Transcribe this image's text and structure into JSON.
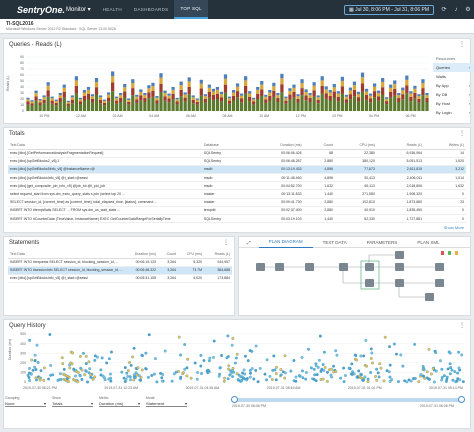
{
  "header": {
    "logo": "SentryOne.",
    "nav_dropdown": "Monitor ▾",
    "tabs": [
      {
        "label": "HEALTH",
        "active": false
      },
      {
        "label": "DASHBOARDS",
        "active": false
      },
      {
        "label": "TOP SQL",
        "active": true
      }
    ],
    "date_range": "Jul 30, 8:06 PM - Jul 31, 8:06 PM",
    "icons": [
      "calendar-icon",
      "sync-icon",
      "bell-icon",
      "settings-icon"
    ]
  },
  "server": {
    "name": "TI-SQL2016",
    "description": "Microsoft Windows Server 2012 R2 Standard · SQL Server 13.00.5026"
  },
  "queries_panel": {
    "title": "Queries - Reads (L)",
    "side_header": "Resources",
    "side_items": [
      {
        "label": "Queries",
        "active": true
      },
      {
        "label": "Waits",
        "active": false
      },
      {
        "label": "By App",
        "active": false
      },
      {
        "label": "By DB",
        "active": false
      },
      {
        "label": "By Host",
        "active": false
      },
      {
        "label": "By Login",
        "active": false
      }
    ]
  },
  "chart_data": {
    "type": "bar",
    "stacked": true,
    "ylabel": "Reads (L)",
    "yticks": [
      "0",
      "10",
      "20",
      "30",
      "40",
      "50",
      "60",
      "70",
      "80",
      "90"
    ],
    "ylim": [
      0,
      90
    ],
    "xticks": [
      "10 PM",
      "12 AM",
      "02 AM",
      "04 AM",
      "06 AM",
      "08 AM",
      "10 AM",
      "12 PM",
      "02 PM",
      "04 PM",
      "06 PM"
    ],
    "series_colors": [
      "#5b7a2e",
      "#9c3b2e",
      "#d8a93a",
      "#4f7fb8"
    ],
    "totals": [
      22,
      18,
      34,
      20,
      26,
      48,
      24,
      19,
      30,
      44,
      17,
      26,
      58,
      22,
      35,
      40,
      28,
      55,
      26,
      19,
      31,
      66,
      24,
      30,
      45,
      21,
      53,
      27,
      36,
      30,
      43,
      47,
      25,
      63,
      34,
      29,
      40,
      22,
      49,
      31,
      56,
      26,
      21,
      52,
      28,
      44,
      37,
      40,
      32,
      61,
      24,
      35,
      46,
      29,
      58,
      33,
      22,
      40,
      50,
      27,
      35,
      47,
      30,
      62,
      24,
      38,
      44,
      28,
      53,
      36,
      30,
      48,
      26,
      58,
      41,
      35,
      45,
      33,
      57,
      27,
      39,
      49,
      32,
      64,
      37,
      29,
      46,
      34,
      55,
      23,
      44,
      51,
      30,
      39,
      59,
      33,
      42,
      28,
      53,
      30
    ]
  },
  "totals_panel": {
    "title": "Totals",
    "columns": [
      "Text Data",
      "Database",
      "Duration (ms)",
      "Count",
      "CPU (ms)",
      "Reads (L)",
      "Writes (L)"
    ],
    "rows": [
      {
        "text": "exec [dbo].[GetPerformanceAnalysisFragmentationRequest]",
        "db": "SQLSentry",
        "dur": "00:06:06.426",
        "count": "68",
        "cpu": "22,380",
        "reads": "6,936,064",
        "writes": "14",
        "sel": false
      },
      {
        "text": "exec [dbo].[spGetBlocks2_v5];1",
        "db": "SQLSentry",
        "dur": "00:06:48.267",
        "count": "2,880",
        "cpu": "380,120",
        "reads": "5,051,513",
        "writes": "1,520",
        "sel": false
      },
      {
        "text": "exec [dbo].[spGetBlocks5Info_v5] @InstanceName=@",
        "db": "msdb",
        "dur": "00:13:19.433",
        "count": "4,896",
        "cpu": "77,673",
        "reads": "2,611,815",
        "writes": "3,212",
        "sel": true
      },
      {
        "text": "exec [dbo].[spGetBlocksInfo_v5] @i_start=@sessi",
        "db": "msdb",
        "dur": "00:11:48.460",
        "count": "4,896",
        "cpu": "30,413",
        "reads": "2,406,011",
        "writes": "1,014",
        "sel": false
      },
      {
        "text": "exec [dbo].[get_composite_job_info_v5] @job_id=@i_pid_job",
        "db": "msdb",
        "dur": "00:04:52.700",
        "count": "1,632",
        "cpu": "69,113",
        "reads": "2,018,806",
        "writes": "1,632",
        "sel": false
      },
      {
        "text": "select request_start from sys.dm_exec_query_stats s join (select top 20 ...",
        "db": "master",
        "dur": "00:13:11.833",
        "count": "1,440",
        "cpu": "271,580",
        "reads": "1,908,320",
        "writes": "0",
        "sel": false
      },
      {
        "text": "SELECT session_id, [current_time] as [current_time], total_elapsed_time, [status], command ...",
        "db": "master",
        "dur": "00:09:41.730",
        "count": "2,880",
        "cpu": "102,810",
        "reads": "1,873,680",
        "writes": "23",
        "sel": false
      },
      {
        "text": "INSERT INTO #tempWaits SELECT ... FROM sys.dm_os_wait_stats ...",
        "db": "tempdb",
        "dur": "00:02:37.400",
        "count": "2,880",
        "cpu": "40,910",
        "reads": "1,835,450",
        "writes": "0",
        "sel": false
      },
      {
        "text": "INSERT INTO #CounterData (TimeValue, InstanceName) EXEC GetCounterDataRangeForSeriallyTime",
        "db": "SQLSentry",
        "dur": "00:03:19.103",
        "count": "1,440",
        "cpu": "52,330",
        "reads": "1,727,881",
        "writes": "0",
        "sel": false
      }
    ],
    "show_more": "Show More"
  },
  "statements_panel": {
    "title": "Statements",
    "columns": [
      "Text Data",
      "Duration (ms)",
      "Count",
      "CPU (ms)",
      "Reads (L)"
    ],
    "rows": [
      {
        "text": "INSERT INTO #requests SELECT session_id, blocking_session_id, ...",
        "dur": "00:06:19.123",
        "count": "3,264",
        "cpu": "5,320",
        "reads": "244,997",
        "sel": false
      },
      {
        "text": "INSERT INTO #sessionInfo SELECT session_id, blocking_session_id, ...",
        "dur": "00:06:48.322",
        "count": "3,264",
        "cpu": "73.7M",
        "reads": "384,688",
        "sel": true
      },
      {
        "text": "exec [dbo].[spGetBlocksInfo_v5] @i_start=@sessi",
        "dur": "00:05:31.105",
        "count": "3,264",
        "cpu": "4,020",
        "reads": "173,884",
        "sel": false
      }
    ]
  },
  "plan_panel": {
    "tabs": [
      {
        "label": "PLAN DIAGRAM",
        "active": true
      },
      {
        "label": "TEXT DATA",
        "active": false
      },
      {
        "label": "PARAMETERS",
        "active": false
      },
      {
        "label": "PLAN XML",
        "active": false
      }
    ]
  },
  "history_panel": {
    "title": "Query History",
    "ylabel": "Duration (ms)",
    "yticks": [
      "0",
      "100",
      "200",
      "300",
      "400",
      "500"
    ],
    "xticks": [
      "2019-07-30 08:21 PM",
      "2019-07-31 12:23 AM",
      "2019-07-31 04:36 AM",
      "2019-07-31 08:49 AM",
      "2019-07-31 01:01 PM",
      "2019-07-31 05:14 PM"
    ],
    "controls": [
      {
        "label": "Grouping",
        "value": "None"
      },
      {
        "label": "Show",
        "value": "Totals"
      },
      {
        "label": "Metric",
        "value": "Duration (ms)"
      },
      {
        "label": "Mode",
        "value": "Statement"
      }
    ],
    "slider_left": "2019-07-30 06:06 PM",
    "slider_right": "2019-07-31 06:06 PM"
  }
}
